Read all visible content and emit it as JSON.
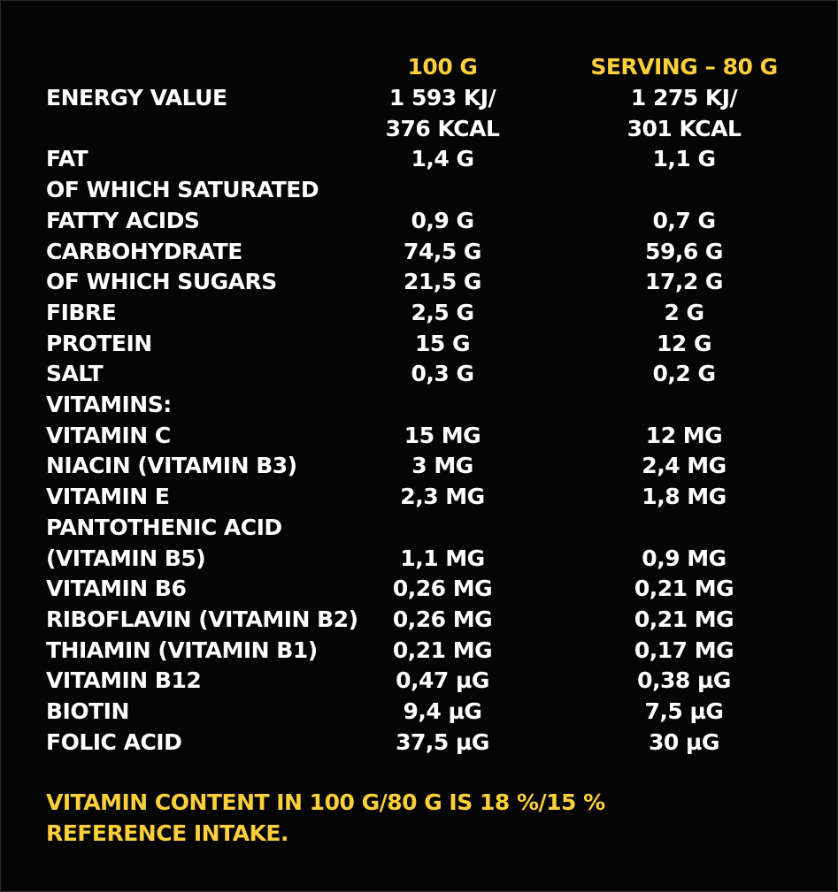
{
  "header": {
    "col1": "100 G",
    "col2": "SERVING – 80 G"
  },
  "rows": [
    {
      "label": "ENERGY VALUE",
      "v1": "1 593 KJ/",
      "v2": "1 275 KJ/"
    },
    {
      "label": "",
      "v1": "376 KCAL",
      "v2": "301 KCAL"
    },
    {
      "label": "FAT",
      "v1": "1,4 G",
      "v2": "1,1 G"
    },
    {
      "label": "OF WHICH SATURATED",
      "v1": "",
      "v2": ""
    },
    {
      "label": "FATTY ACIDS",
      "v1": "0,9 G",
      "v2": "0,7 G"
    },
    {
      "label": "CARBOHYDRATE",
      "v1": "74,5 G",
      "v2": "59,6 G"
    },
    {
      "label": "OF WHICH SUGARS",
      "v1": "21,5 G",
      "v2": "17,2 G"
    },
    {
      "label": "FIBRE",
      "v1": "2,5 G",
      "v2": "2 G"
    },
    {
      "label": "PROTEIN",
      "v1": "15 G",
      "v2": "12 G"
    },
    {
      "label": "SALT",
      "v1": "0,3 G",
      "v2": "0,2 G"
    },
    {
      "label": "VITAMINS:",
      "v1": "",
      "v2": ""
    },
    {
      "label": "VITAMIN C",
      "v1": "15 MG",
      "v2": "12 MG"
    },
    {
      "label": "NIACIN (VITAMIN B3)",
      "v1": "3 MG",
      "v2": "2,4 MG"
    },
    {
      "label": "VITAMIN E",
      "v1": "2,3 MG",
      "v2": "1,8 MG"
    },
    {
      "label": "PANTOTHENIC ACID",
      "v1": "",
      "v2": ""
    },
    {
      "label": "(VITAMIN B5)",
      "v1": "1,1 MG",
      "v2": "0,9 MG"
    },
    {
      "label": "VITAMIN B6",
      "v1": "0,26 MG",
      "v2": "0,21 MG"
    },
    {
      "label": "RIBOFLAVIN (VITAMIN B2)",
      "v1": "0,26 MG",
      "v2": "0,21 MG"
    },
    {
      "label": "THIAMIN (VITAMIN B1)",
      "v1": "0,21 MG",
      "v2": "0,17 MG"
    },
    {
      "label": "VITAMIN B12",
      "v1": "0,47 µG",
      "v2": "0,38 µG"
    },
    {
      "label": "BIOTIN",
      "v1": "9,4 µG",
      "v2": "7,5 µG"
    },
    {
      "label": "FOLIC ACID",
      "v1": "37,5 µG",
      "v2": "30 µG"
    }
  ],
  "footer": {
    "line1": "VITAMIN CONTENT IN 100 G/80 G IS 18 %/15 %",
    "line2": "REFERENCE INTAKE."
  }
}
